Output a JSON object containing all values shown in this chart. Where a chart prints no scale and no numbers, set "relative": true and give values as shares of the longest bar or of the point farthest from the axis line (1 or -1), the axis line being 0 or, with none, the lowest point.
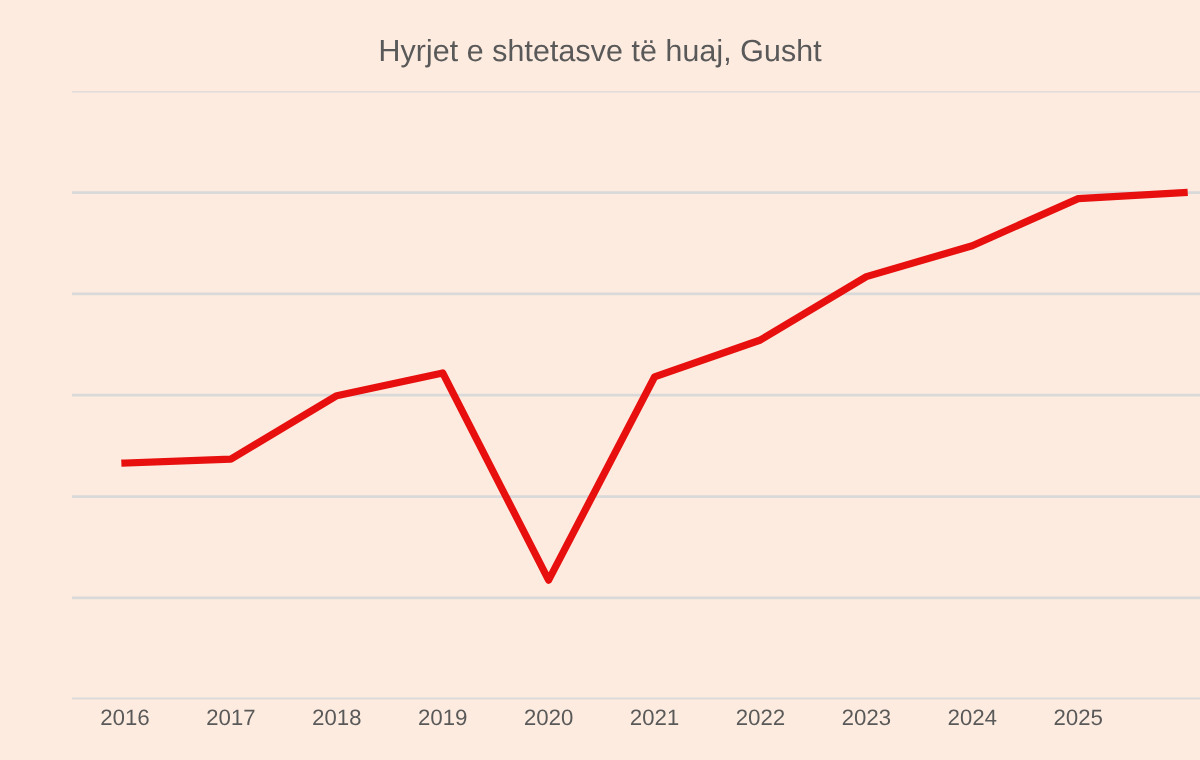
{
  "chart_data": {
    "type": "line",
    "title": "Hyrjet e shtetasve të huaj, Gusht",
    "relative": true,
    "grid": "y",
    "marker": "none",
    "line_style": "solid",
    "categories": [
      "2016",
      "2017",
      "2018",
      "2019",
      "2020",
      "2021",
      "2022",
      "2023",
      "2024",
      "2025",
      null
    ],
    "series": [
      {
        "color": "#e8100f",
        "values": [
          0.466,
          0.474,
          0.599,
          0.644,
          0.235,
          0.636,
          0.709,
          0.834,
          0.895,
          0.988,
          1
        ]
      }
    ]
  }
}
